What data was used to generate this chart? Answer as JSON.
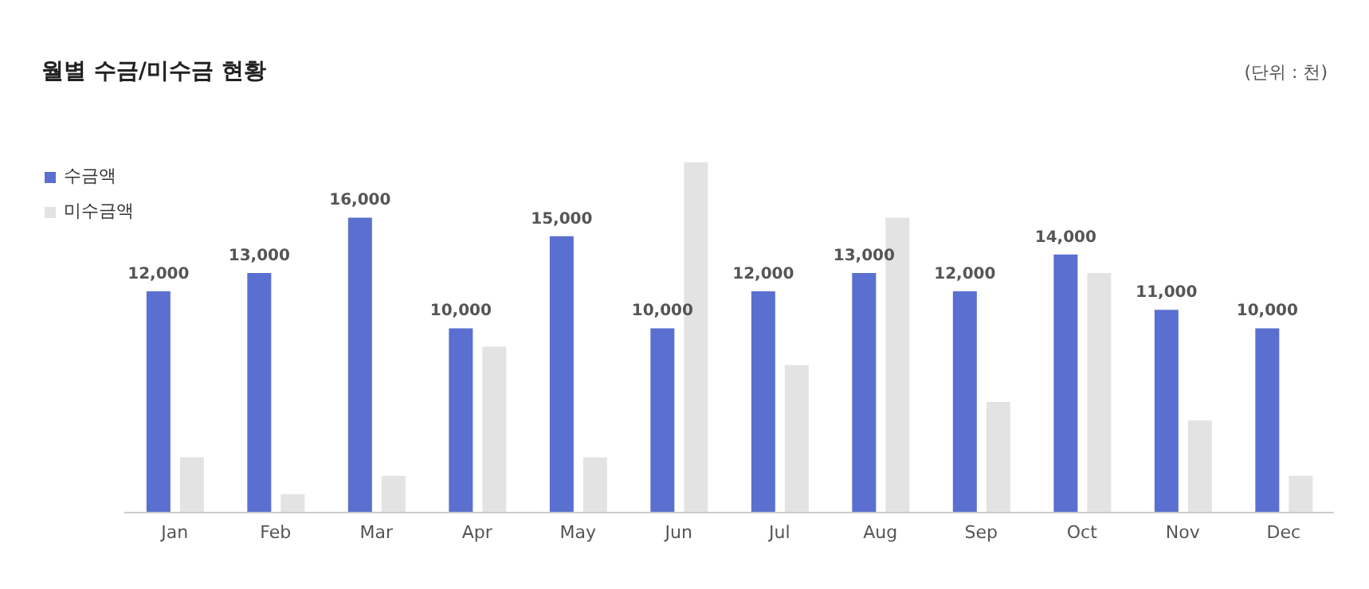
{
  "chart_data": {
    "type": "bar",
    "title": "월별 수금/미수금 현황",
    "annotations": [
      "(단위 : 천)"
    ],
    "categories": [
      "Jan",
      "Feb",
      "Mar",
      "Apr",
      "May",
      "Jun",
      "Jul",
      "Aug",
      "Sep",
      "Oct",
      "Nov",
      "Dec"
    ],
    "series": [
      {
        "name": "수금액",
        "color": "#5a6fcf",
        "values": [
          12000,
          13000,
          16000,
          10000,
          15000,
          10000,
          12000,
          13000,
          12000,
          14000,
          11000,
          10000
        ],
        "value_labels": [
          "12,000",
          "13,000",
          "16,000",
          "10,000",
          "15,000",
          "10,000",
          "12,000",
          "13,000",
          "12,000",
          "14,000",
          "11,000",
          "10,000"
        ]
      },
      {
        "name": "미수금액",
        "color": "#e3e3e3",
        "values": [
          3000,
          1000,
          2000,
          9000,
          3000,
          19000,
          8000,
          16000,
          6000,
          13000,
          5000,
          2000
        ]
      }
    ],
    "ylim": [
      0,
      19000
    ],
    "tick_labels": "x",
    "legend": "top left"
  }
}
